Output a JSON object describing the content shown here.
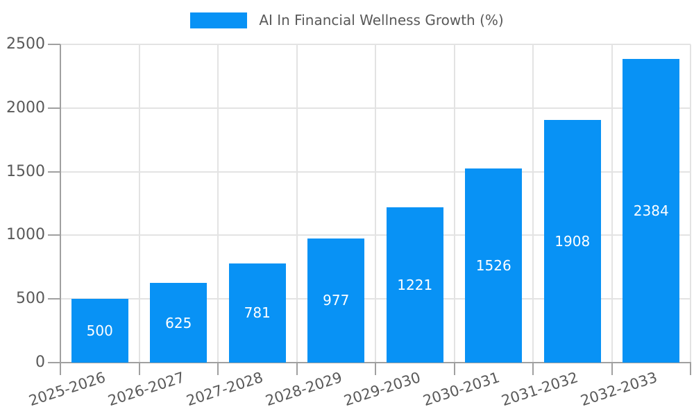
{
  "chart_data": {
    "type": "bar",
    "legend_position": "top",
    "categories": [
      "2025-2026",
      "2026-2027",
      "2027-2028",
      "2028-2029",
      "2029-2030",
      "2030-2031",
      "2031-2032",
      "2032-2033"
    ],
    "series": [
      {
        "name": "AI In Financial Wellness Growth (%)",
        "values": [
          500,
          625,
          781,
          977,
          1221,
          1526,
          1908,
          2384
        ]
      }
    ],
    "bar_value_labels": [
      500,
      625,
      781,
      977,
      1221,
      1526,
      1908,
      2384
    ],
    "ylim": [
      0,
      2500
    ],
    "yticks": [
      0,
      500,
      1000,
      1500,
      2000,
      2500
    ],
    "grid": true,
    "colors": {
      "bar": "#0892f5",
      "bar_label": "#ffffff",
      "text": "#595959",
      "grid": "#e3e3e3",
      "axis": "#a0a0a0",
      "background": "#ffffff"
    }
  }
}
